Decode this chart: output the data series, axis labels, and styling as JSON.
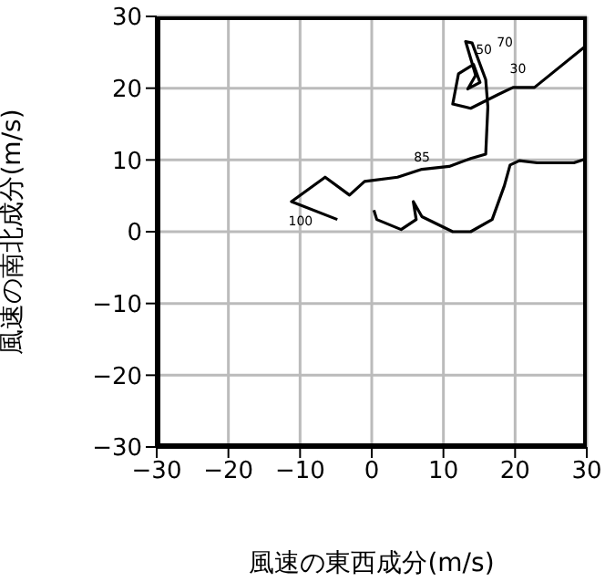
{
  "chart_data": {
    "type": "line",
    "xlabel": "風速の東西成分(m/s)",
    "ylabel": "風速の南北成分(m/s)",
    "xlim": [
      -30,
      30
    ],
    "ylim": [
      -30,
      30
    ],
    "xticks": [
      {
        "value": -30,
        "label": "−30"
      },
      {
        "value": -20,
        "label": "−20"
      },
      {
        "value": -10,
        "label": "−10"
      },
      0,
      10,
      20,
      30
    ],
    "yticks": [
      {
        "value": -30,
        "label": "−30"
      },
      {
        "value": -20,
        "label": "−20"
      },
      {
        "value": -10,
        "label": "−10"
      },
      0,
      10,
      20,
      30
    ],
    "grid": true,
    "marker": "none",
    "line_style": "solid",
    "series": [
      {
        "color": "#000000",
        "x": [
          30,
          22.7,
          19.7,
          17.6,
          13.8,
          11.3,
          12.1,
          14.2,
          15.1,
          13.4,
          14.5,
          13.1,
          14.0,
          15.9,
          16.2,
          15.9,
          13.8,
          10.8,
          7.0,
          3.6,
          -1.0,
          -3.1,
          -6.5,
          -11.2,
          -4.8
        ],
        "values": [
          26,
          20.1,
          20.1,
          19.1,
          17.2,
          17.8,
          22.0,
          23.3,
          20.8,
          19.9,
          21.8,
          26.5,
          26.3,
          21.2,
          17.4,
          10.8,
          10.2,
          9.1,
          8.7,
          7.6,
          7.0,
          5.1,
          7.6,
          4.2,
          1.7
        ]
      },
      {
        "color": "#000000",
        "x": [
          0.3,
          0.7,
          4.1,
          6.2,
          5.8,
          7.0,
          11.3,
          13.8,
          16.8,
          18.5,
          19.3,
          20.6,
          23.1,
          28.2,
          30
        ],
        "values": [
          3.0,
          1.7,
          0.3,
          1.7,
          4.2,
          2.1,
          0,
          0,
          1.7,
          6.4,
          9.3,
          9.9,
          9.6,
          9.6,
          10.2
        ]
      }
    ],
    "annotations": [
      {
        "text": "70",
        "x": 14.0,
        "y": 26.3
      },
      {
        "text": "50",
        "x": 13.1,
        "y": 26.5
      },
      {
        "text": "30",
        "x": 17.6,
        "y": 19.1
      },
      {
        "text": "85",
        "x": 7.0,
        "y": 8.7
      },
      {
        "text": "100",
        "x": -11.2,
        "y": 4.2
      }
    ]
  }
}
